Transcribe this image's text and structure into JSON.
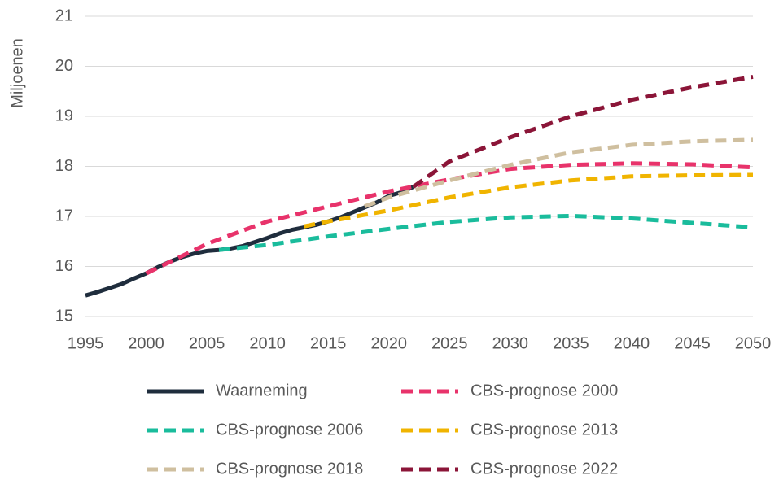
{
  "chart_data": {
    "type": "line",
    "y_label": "Miljoenen",
    "xlim": [
      1995,
      2050
    ],
    "xticks": [
      1995,
      2000,
      2005,
      2010,
      2015,
      2020,
      2025,
      2030,
      2035,
      2040,
      2045,
      2050
    ],
    "ylim": [
      15,
      21
    ],
    "yticks": [
      15,
      16,
      17,
      18,
      19,
      20,
      21
    ],
    "grid": true,
    "series": [
      {
        "name": "Waarneming",
        "color": "#1f2d3d",
        "style": "solid",
        "x": [
          1995,
          1996,
          1997,
          1998,
          1999,
          2000,
          2001,
          2002,
          2003,
          2004,
          2005,
          2006,
          2007,
          2008,
          2009,
          2010,
          2011,
          2012,
          2013,
          2014,
          2015,
          2016,
          2017,
          2018,
          2019,
          2020,
          2021,
          2022
        ],
        "values": [
          15.42,
          15.49,
          15.57,
          15.65,
          15.76,
          15.86,
          15.99,
          16.1,
          16.19,
          16.26,
          16.31,
          16.33,
          16.36,
          16.41,
          16.49,
          16.57,
          16.66,
          16.73,
          16.78,
          16.83,
          16.9,
          16.98,
          17.08,
          17.18,
          17.28,
          17.41,
          17.48,
          17.59
        ]
      },
      {
        "name": "CBS-prognose 2000",
        "color": "#e8336b",
        "style": "dashed",
        "x": [
          2000,
          2005,
          2010,
          2015,
          2020,
          2025,
          2030,
          2035,
          2040,
          2045,
          2050
        ],
        "values": [
          15.86,
          16.45,
          16.9,
          17.2,
          17.5,
          17.74,
          17.95,
          18.03,
          18.06,
          18.04,
          17.98
        ]
      },
      {
        "name": "CBS-prognose 2006",
        "color": "#1abc9c",
        "style": "dashed",
        "x": [
          2006,
          2010,
          2015,
          2020,
          2025,
          2030,
          2035,
          2040,
          2045,
          2050
        ],
        "values": [
          16.33,
          16.43,
          16.6,
          16.75,
          16.89,
          16.98,
          17.01,
          16.96,
          16.87,
          16.78
        ]
      },
      {
        "name": "CBS-prognose 2013",
        "color": "#f0b400",
        "style": "dashed",
        "x": [
          2013,
          2015,
          2020,
          2025,
          2030,
          2035,
          2040,
          2045,
          2050
        ],
        "values": [
          16.8,
          16.9,
          17.12,
          17.38,
          17.58,
          17.72,
          17.8,
          17.82,
          17.83
        ]
      },
      {
        "name": "CBS-prognose 2018",
        "color": "#cfbf9f",
        "style": "dashed",
        "x": [
          2018,
          2020,
          2025,
          2030,
          2035,
          2040,
          2045,
          2050
        ],
        "values": [
          17.2,
          17.38,
          17.72,
          18.03,
          18.28,
          18.43,
          18.5,
          18.53
        ]
      },
      {
        "name": "CBS-prognose 2022",
        "color": "#8b1538",
        "style": "dashed",
        "x": [
          2022,
          2025,
          2030,
          2035,
          2040,
          2045,
          2050
        ],
        "values": [
          17.59,
          18.1,
          18.58,
          19.0,
          19.33,
          19.58,
          19.79
        ]
      }
    ]
  }
}
